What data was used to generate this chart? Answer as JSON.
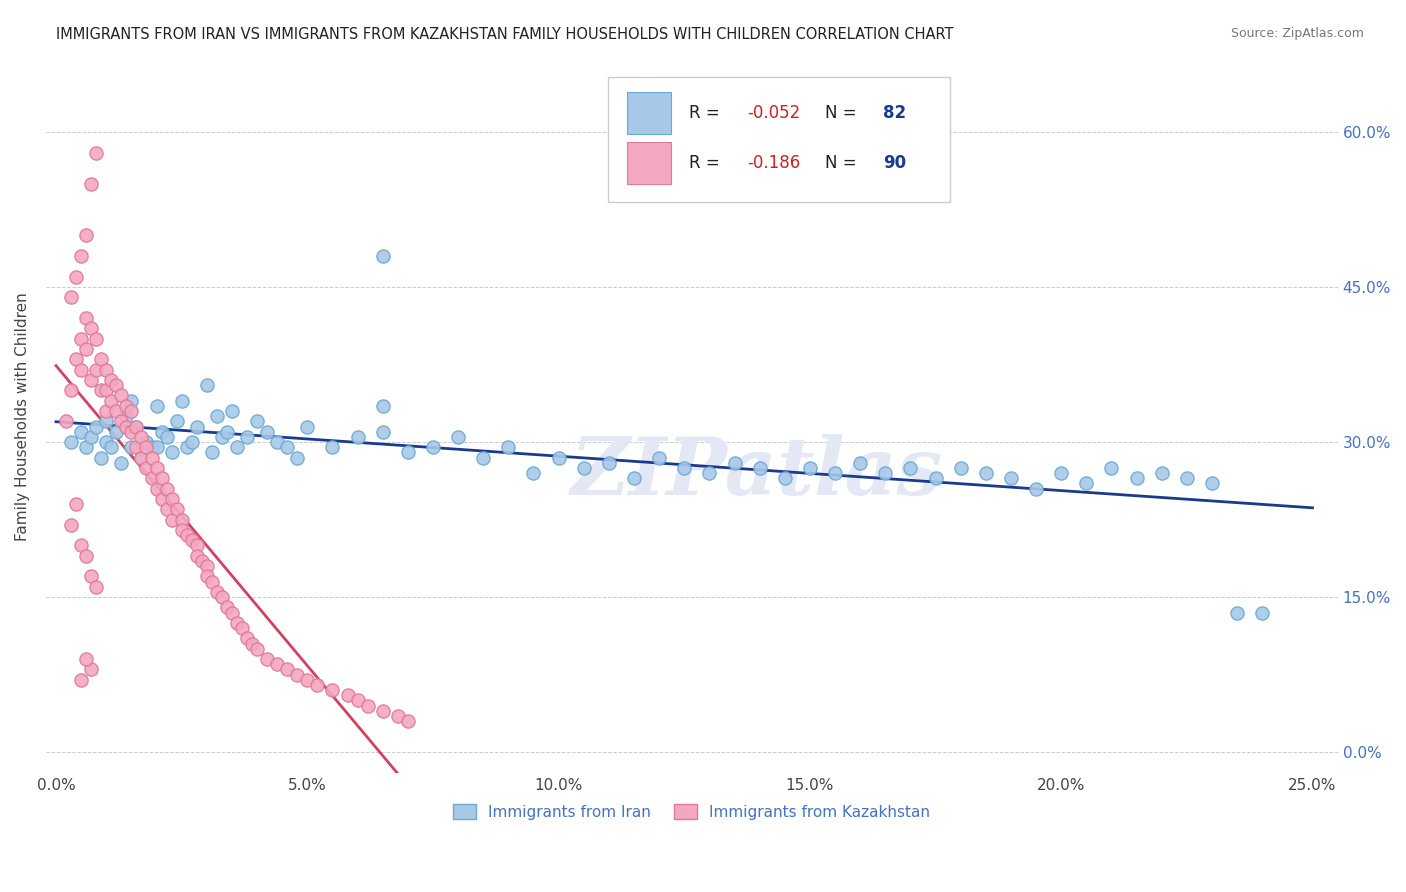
{
  "title": "IMMIGRANTS FROM IRAN VS IMMIGRANTS FROM KAZAKHSTAN FAMILY HOUSEHOLDS WITH CHILDREN CORRELATION CHART",
  "source": "Source: ZipAtlas.com",
  "ylabel": "Family Households with Children",
  "x_ticks": [
    "0.0%",
    "5.0%",
    "10.0%",
    "15.0%",
    "20.0%",
    "25.0%"
  ],
  "x_tick_vals": [
    0.0,
    0.05,
    0.1,
    0.15,
    0.2,
    0.25
  ],
  "y_ticks_right": [
    "60.0%",
    "45.0%",
    "30.0%",
    "15.0%",
    "0.0%"
  ],
  "y_tick_vals": [
    0.6,
    0.45,
    0.3,
    0.15,
    0.0
  ],
  "xlim": [
    -0.002,
    0.255
  ],
  "ylim": [
    -0.02,
    0.67
  ],
  "iran_color": "#a8c8e8",
  "iran_edge_color": "#6aaad4",
  "kazakh_color": "#f4a8c0",
  "kazakh_edge_color": "#e07898",
  "trend_iran_color": "#1a3a8f",
  "trend_kazakh_solid_color": "#d44060",
  "trend_kazakh_dash_color": "#e0a0b0",
  "legend_iran_label": "Immigrants from Iran",
  "legend_kazakh_label": "Immigrants from Kazakhstan",
  "R_iran": -0.052,
  "N_iran": 82,
  "R_kazakh": -0.186,
  "N_kazakh": 90,
  "watermark": "ZIPatlas",
  "iran_x": [
    0.003,
    0.005,
    0.006,
    0.007,
    0.008,
    0.009,
    0.01,
    0.01,
    0.011,
    0.012,
    0.013,
    0.014,
    0.015,
    0.015,
    0.016,
    0.017,
    0.018,
    0.019,
    0.02,
    0.02,
    0.021,
    0.022,
    0.023,
    0.024,
    0.025,
    0.026,
    0.027,
    0.028,
    0.03,
    0.031,
    0.032,
    0.033,
    0.034,
    0.035,
    0.036,
    0.038,
    0.04,
    0.042,
    0.044,
    0.046,
    0.048,
    0.05,
    0.055,
    0.06,
    0.065,
    0.065,
    0.07,
    0.075,
    0.08,
    0.085,
    0.09,
    0.095,
    0.1,
    0.105,
    0.11,
    0.115,
    0.12,
    0.125,
    0.13,
    0.135,
    0.14,
    0.145,
    0.15,
    0.155,
    0.16,
    0.165,
    0.17,
    0.175,
    0.18,
    0.185,
    0.19,
    0.195,
    0.2,
    0.205,
    0.21,
    0.215,
    0.22,
    0.225,
    0.23,
    0.235,
    0.24,
    0.065
  ],
  "iran_y": [
    0.3,
    0.31,
    0.295,
    0.305,
    0.315,
    0.285,
    0.32,
    0.3,
    0.295,
    0.31,
    0.28,
    0.325,
    0.34,
    0.295,
    0.315,
    0.285,
    0.3,
    0.295,
    0.335,
    0.295,
    0.31,
    0.305,
    0.29,
    0.32,
    0.34,
    0.295,
    0.3,
    0.315,
    0.355,
    0.29,
    0.325,
    0.305,
    0.31,
    0.33,
    0.295,
    0.305,
    0.32,
    0.31,
    0.3,
    0.295,
    0.285,
    0.315,
    0.295,
    0.305,
    0.335,
    0.31,
    0.29,
    0.295,
    0.305,
    0.285,
    0.295,
    0.27,
    0.285,
    0.275,
    0.28,
    0.265,
    0.285,
    0.275,
    0.27,
    0.28,
    0.275,
    0.265,
    0.275,
    0.27,
    0.28,
    0.27,
    0.275,
    0.265,
    0.275,
    0.27,
    0.265,
    0.255,
    0.27,
    0.26,
    0.275,
    0.265,
    0.27,
    0.265,
    0.26,
    0.135,
    0.135,
    0.48
  ],
  "kazakh_x": [
    0.002,
    0.003,
    0.004,
    0.005,
    0.005,
    0.006,
    0.006,
    0.007,
    0.007,
    0.008,
    0.008,
    0.009,
    0.009,
    0.01,
    0.01,
    0.01,
    0.011,
    0.011,
    0.012,
    0.012,
    0.013,
    0.013,
    0.014,
    0.014,
    0.015,
    0.015,
    0.016,
    0.016,
    0.017,
    0.017,
    0.018,
    0.018,
    0.019,
    0.019,
    0.02,
    0.02,
    0.021,
    0.021,
    0.022,
    0.022,
    0.023,
    0.023,
    0.024,
    0.025,
    0.025,
    0.026,
    0.027,
    0.028,
    0.028,
    0.029,
    0.03,
    0.03,
    0.031,
    0.032,
    0.033,
    0.034,
    0.035,
    0.036,
    0.037,
    0.038,
    0.039,
    0.04,
    0.042,
    0.044,
    0.046,
    0.048,
    0.05,
    0.052,
    0.055,
    0.058,
    0.06,
    0.062,
    0.065,
    0.068,
    0.07,
    0.003,
    0.004,
    0.005,
    0.006,
    0.007,
    0.008,
    0.003,
    0.004,
    0.005,
    0.006,
    0.007,
    0.008,
    0.007,
    0.006,
    0.005
  ],
  "kazakh_y": [
    0.32,
    0.35,
    0.38,
    0.4,
    0.37,
    0.42,
    0.39,
    0.41,
    0.36,
    0.4,
    0.37,
    0.38,
    0.35,
    0.37,
    0.35,
    0.33,
    0.36,
    0.34,
    0.355,
    0.33,
    0.345,
    0.32,
    0.335,
    0.315,
    0.33,
    0.31,
    0.315,
    0.295,
    0.305,
    0.285,
    0.295,
    0.275,
    0.285,
    0.265,
    0.275,
    0.255,
    0.265,
    0.245,
    0.255,
    0.235,
    0.245,
    0.225,
    0.235,
    0.225,
    0.215,
    0.21,
    0.205,
    0.2,
    0.19,
    0.185,
    0.18,
    0.17,
    0.165,
    0.155,
    0.15,
    0.14,
    0.135,
    0.125,
    0.12,
    0.11,
    0.105,
    0.1,
    0.09,
    0.085,
    0.08,
    0.075,
    0.07,
    0.065,
    0.06,
    0.055,
    0.05,
    0.045,
    0.04,
    0.035,
    0.03,
    0.44,
    0.46,
    0.48,
    0.5,
    0.55,
    0.58,
    0.22,
    0.24,
    0.2,
    0.19,
    0.17,
    0.16,
    0.08,
    0.09,
    0.07
  ]
}
